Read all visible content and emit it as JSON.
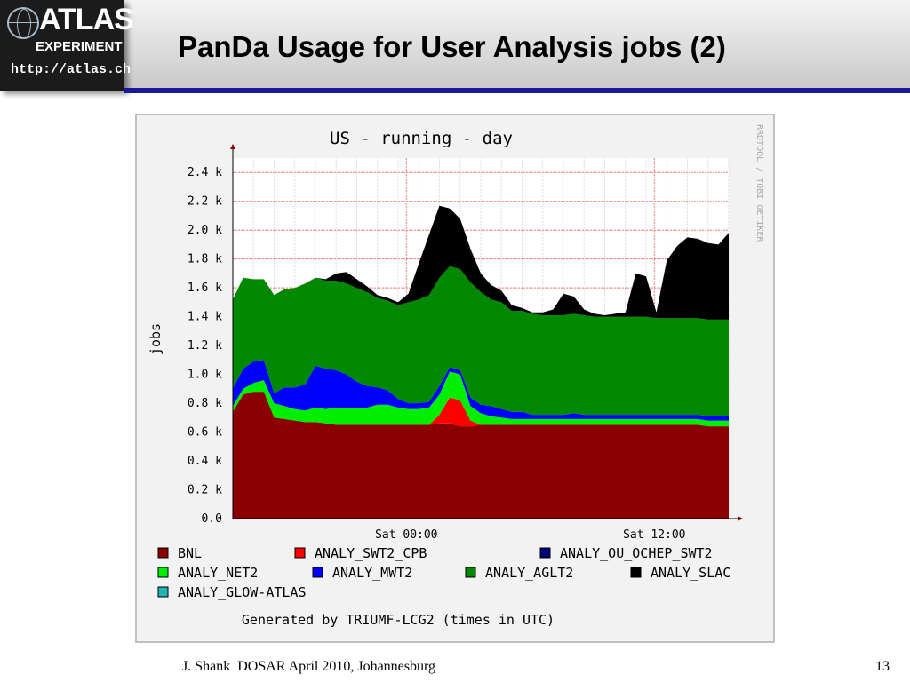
{
  "slide": {
    "title": "PanDa Usage for User Analysis jobs (2)",
    "footer": "J. Shank  DOSAR April 2010, Johannesburg",
    "page_number": "13",
    "logo": {
      "line1": "ATLAS",
      "line2": "EXPERIMENT",
      "line3": "http://atlas.ch"
    }
  },
  "chart_data": {
    "type": "area",
    "title": "US - running - day",
    "ylabel": "jobs",
    "xlabel": "",
    "watermark": "RRDTOOL / TOBI OETIKER",
    "footer_note": "Generated by TRIUMF-LCG2 (times in UTC)",
    "y_tick_labels": [
      "0.0",
      "0.2 k",
      "0.4 k",
      "0.6 k",
      "0.8 k",
      "1.0 k",
      "1.2 k",
      "1.4 k",
      "1.6 k",
      "1.8 k",
      "2.0 k",
      "2.2 k",
      "2.4 k"
    ],
    "ylim": [
      0,
      2500
    ],
    "x_tick_labels": [
      "Sat 00:00",
      "Sat 12:00"
    ],
    "x_tick_hours": [
      8.4,
      20.4
    ],
    "x_range_hours": [
      0,
      24
    ],
    "grid": true,
    "stacked": true,
    "x": [
      0,
      0.5,
      1,
      1.5,
      2,
      2.5,
      3,
      3.5,
      4,
      4.5,
      5,
      5.5,
      6,
      6.5,
      7,
      7.5,
      8,
      8.5,
      9,
      9.5,
      10,
      10.5,
      11,
      11.5,
      12,
      12.5,
      13,
      13.5,
      14,
      14.5,
      15,
      15.5,
      16,
      16.5,
      17,
      17.5,
      18,
      18.5,
      19,
      19.5,
      20,
      20.5,
      21,
      21.5,
      22,
      22.5,
      23,
      23.5,
      24
    ],
    "series": [
      {
        "name": "BNL",
        "color": "#8b0000",
        "values": [
          740,
          860,
          880,
          880,
          700,
          690,
          680,
          670,
          670,
          660,
          650,
          650,
          650,
          650,
          650,
          650,
          650,
          650,
          650,
          650,
          660,
          660,
          640,
          640,
          650,
          650,
          650,
          650,
          650,
          650,
          650,
          650,
          650,
          650,
          650,
          650,
          650,
          650,
          650,
          650,
          650,
          650,
          650,
          650,
          650,
          650,
          640,
          640,
          640
        ]
      },
      {
        "name": "ANALY_SWT2_CPB",
        "color": "#ff0000",
        "values": [
          0,
          0,
          0,
          0,
          0,
          0,
          0,
          0,
          0,
          0,
          0,
          0,
          0,
          0,
          0,
          0,
          0,
          0,
          0,
          0,
          60,
          180,
          180,
          40,
          0,
          0,
          0,
          0,
          0,
          0,
          0,
          0,
          0,
          0,
          0,
          0,
          0,
          0,
          0,
          0,
          0,
          0,
          0,
          0,
          0,
          0,
          0,
          0,
          0
        ]
      },
      {
        "name": "ANALY_OU_OCHEP_SWT2",
        "color": "#00007a",
        "values": [
          0,
          0,
          0,
          0,
          0,
          0,
          0,
          0,
          0,
          0,
          0,
          0,
          0,
          0,
          0,
          0,
          0,
          0,
          0,
          0,
          0,
          0,
          0,
          0,
          0,
          0,
          0,
          0,
          0,
          0,
          0,
          0,
          0,
          0,
          0,
          0,
          0,
          0,
          0,
          0,
          0,
          0,
          0,
          0,
          0,
          0,
          0,
          0,
          0
        ]
      },
      {
        "name": "ANALY_NET2",
        "color": "#00ee00",
        "values": [
          40,
          40,
          60,
          80,
          100,
          90,
          80,
          80,
          100,
          100,
          120,
          120,
          120,
          120,
          140,
          140,
          120,
          110,
          110,
          120,
          140,
          180,
          180,
          100,
          80,
          60,
          50,
          40,
          40,
          40,
          40,
          40,
          40,
          40,
          40,
          40,
          40,
          40,
          40,
          40,
          40,
          40,
          40,
          40,
          40,
          40,
          40,
          40,
          40
        ]
      },
      {
        "name": "ANALY_MWT2",
        "color": "#0000ff",
        "values": [
          120,
          140,
          150,
          140,
          70,
          130,
          150,
          180,
          290,
          280,
          260,
          230,
          180,
          150,
          120,
          100,
          60,
          40,
          40,
          40,
          60,
          30,
          30,
          60,
          60,
          70,
          60,
          50,
          50,
          30,
          30,
          30,
          30,
          40,
          30,
          30,
          30,
          30,
          30,
          30,
          30,
          30,
          30,
          30,
          30,
          30,
          30,
          30,
          30
        ]
      },
      {
        "name": "ANALY_AGLT2",
        "color": "#008800",
        "values": [
          620,
          630,
          570,
          560,
          680,
          680,
          690,
          700,
          610,
          610,
          620,
          630,
          650,
          650,
          620,
          620,
          650,
          700,
          720,
          740,
          750,
          700,
          700,
          800,
          780,
          740,
          740,
          700,
          700,
          700,
          690,
          690,
          690,
          690,
          690,
          680,
          680,
          680,
          680,
          680,
          680,
          670,
          670,
          670,
          670,
          670,
          670,
          670,
          670
        ]
      },
      {
        "name": "ANALY_SLAC",
        "color": "#000000",
        "values": [
          0,
          0,
          0,
          0,
          0,
          0,
          0,
          0,
          0,
          10,
          50,
          80,
          60,
          40,
          20,
          20,
          20,
          60,
          250,
          420,
          500,
          400,
          350,
          230,
          130,
          100,
          80,
          40,
          20,
          10,
          20,
          40,
          150,
          120,
          40,
          20,
          10,
          20,
          30,
          300,
          280,
          40,
          400,
          500,
          560,
          550,
          530,
          520,
          600
        ]
      },
      {
        "name": "ANALY_GLOW-ATLAS",
        "color": "#1fb5b5",
        "values": [
          0,
          0,
          0,
          0,
          0,
          0,
          0,
          0,
          0,
          0,
          0,
          0,
          0,
          0,
          0,
          0,
          0,
          0,
          0,
          0,
          0,
          0,
          0,
          0,
          0,
          0,
          0,
          0,
          0,
          0,
          0,
          0,
          0,
          0,
          0,
          0,
          0,
          0,
          0,
          0,
          0,
          0,
          0,
          0,
          0,
          0,
          0,
          0,
          0
        ]
      }
    ],
    "legend_order": [
      "BNL",
      "ANALY_SWT2_CPB",
      "ANALY_OU_OCHEP_SWT2",
      "ANALY_NET2",
      "ANALY_MWT2",
      "ANALY_AGLT2",
      "ANALY_SLAC",
      "ANALY_GLOW-ATLAS"
    ]
  }
}
